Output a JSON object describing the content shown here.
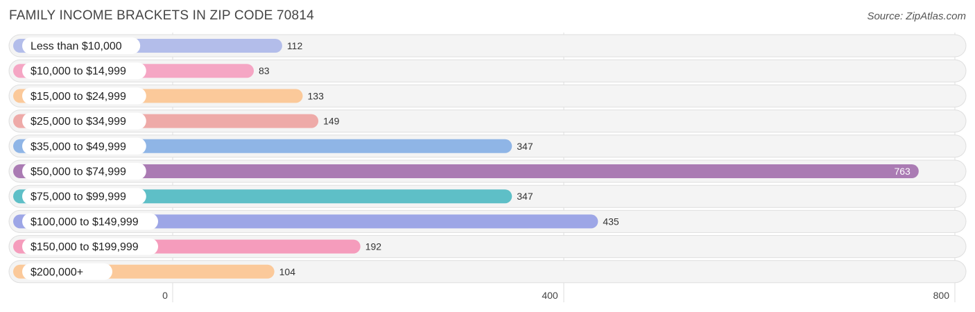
{
  "title": "FAMILY INCOME BRACKETS IN ZIP CODE 70814",
  "source": "Source: ZipAtlas.com",
  "chart_data": {
    "type": "bar",
    "orientation": "horizontal",
    "title": "FAMILY INCOME BRACKETS IN ZIP CODE 70814",
    "xlabel": "",
    "ylabel": "",
    "xlim": [
      0,
      800
    ],
    "ticks": [
      0,
      400,
      800
    ],
    "grid": true,
    "categories": [
      "Less than $10,000",
      "$10,000 to $14,999",
      "$15,000 to $24,999",
      "$25,000 to $34,999",
      "$35,000 to $49,999",
      "$50,000 to $74,999",
      "$75,000 to $99,999",
      "$100,000 to $149,999",
      "$150,000 to $199,999",
      "$200,000+"
    ],
    "values": [
      112,
      83,
      133,
      149,
      347,
      763,
      347,
      435,
      192,
      104
    ],
    "colors": [
      "#b3bdea",
      "#f5a6c4",
      "#fbc99a",
      "#eeaaa8",
      "#8fb5e6",
      "#aa7bb3",
      "#5ebfc7",
      "#9da6e6",
      "#f59cbc",
      "#fbc99a"
    ]
  }
}
